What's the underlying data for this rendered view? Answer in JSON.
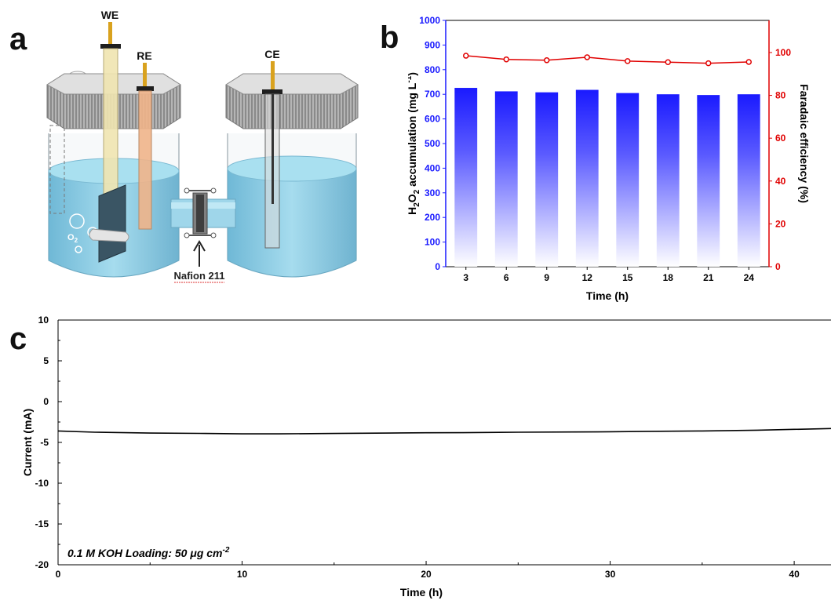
{
  "panels": {
    "a": "a",
    "b": "b",
    "c": "c"
  },
  "schematic": {
    "electrode_labels": {
      "we": "WE",
      "re": "RE",
      "ce": "CE"
    },
    "membrane_label": "Nafion 211",
    "gas_label": "O",
    "gas_subscript": "2",
    "colors": {
      "electrolyte": "#8fd0e8",
      "lid": "#c8c8c8",
      "electrode_tip": "#d9a21e",
      "we_rod": "#efe4b0",
      "re_rod": "#f0b48a",
      "electrode_plate": "#3a5564"
    }
  },
  "chart_data": [
    {
      "type": "bar",
      "panel": "b",
      "categories": [
        "3",
        "6",
        "9",
        "12",
        "15",
        "18",
        "21",
        "24"
      ],
      "xlabel": "Time (h)",
      "ylabel_parts": {
        "h": "H",
        "sub2": "2",
        "o": "O",
        "rest": " accumulation (mg L",
        "sup": "-1",
        "close": ")"
      },
      "y2label": "Faradaic efficiency (%)",
      "ylim": [
        0,
        1000
      ],
      "yticks": [
        "0",
        "100",
        "200",
        "300",
        "400",
        "500",
        "600",
        "700",
        "800",
        "900",
        "1000"
      ],
      "y2lim": [
        0,
        115
      ],
      "y2ticks": [
        "0",
        "20",
        "40",
        "60",
        "80",
        "100"
      ],
      "series": [
        {
          "axis": "left",
          "kind": "bar",
          "color": "#1a1aff",
          "values": [
            726,
            712,
            708,
            718,
            705,
            700,
            697,
            700
          ]
        },
        {
          "axis": "right",
          "kind": "line",
          "color": "#e00000",
          "values": [
            98.5,
            96.8,
            96.4,
            97.8,
            96.0,
            95.5,
            95.0,
            95.6
          ]
        }
      ]
    },
    {
      "type": "line",
      "panel": "c",
      "xlabel": "Time (h)",
      "ylabel": "Current (mA)",
      "xlim": [
        0,
        42
      ],
      "xticks": [
        "0",
        "10",
        "20",
        "30",
        "40"
      ],
      "ylim": [
        -20,
        10
      ],
      "yticks": [
        "10",
        "5",
        "0",
        "-5",
        "-10",
        "-15",
        "-20"
      ],
      "annotation_prefix": "0.1 M KOH Loading: 50 ",
      "annotation_mu": "μ",
      "annotation_suffix": "g cm",
      "annotation_sup": "-2",
      "series": [
        {
          "color": "#000000",
          "x": [
            0,
            2,
            5,
            8,
            10,
            12,
            15,
            18,
            20,
            22,
            25,
            28,
            30,
            32,
            35,
            38,
            40,
            42
          ],
          "y": [
            -3.6,
            -3.75,
            -3.85,
            -3.9,
            -3.95,
            -3.95,
            -3.9,
            -3.85,
            -3.82,
            -3.8,
            -3.75,
            -3.72,
            -3.7,
            -3.65,
            -3.6,
            -3.5,
            -3.4,
            -3.3
          ]
        }
      ]
    }
  ]
}
